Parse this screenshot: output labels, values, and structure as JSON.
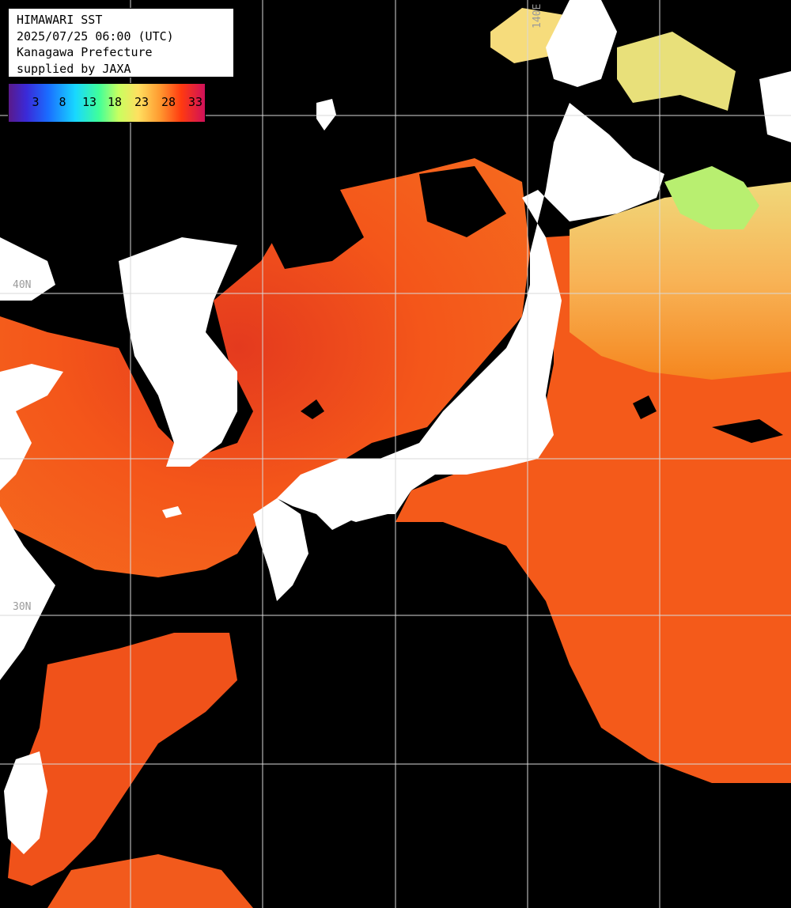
{
  "info": {
    "line1": "HIMAWARI SST",
    "line2": "2025/07/25 06:00 (UTC)",
    "line3": "Kanagawa Prefecture",
    "line4": "supplied by JAXA"
  },
  "legend": {
    "ticks": [
      "3",
      "8",
      "13",
      "18",
      "23",
      "28",
      "33"
    ]
  },
  "grid": {
    "lat_labels": [
      "40N",
      "30N"
    ],
    "lon_label": "140E"
  },
  "colors": {
    "ocean_warm": "#f25a1a",
    "ocean_hot": "#d8202a",
    "ocean_cool": "#f7b060",
    "land": "#ffffff",
    "cloud": "#000000",
    "grid": "#d9d9d9"
  }
}
